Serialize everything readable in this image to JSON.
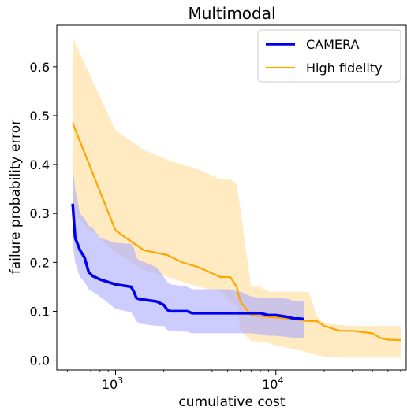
{
  "chart_data": {
    "type": "line",
    "title": "Multimodal",
    "xlabel": "cumulative cost",
    "ylabel": "failure probability error",
    "xscale": "log",
    "xlim": [
      430,
      65000
    ],
    "ylim": [
      -0.02,
      0.685
    ],
    "x_ticks": [
      {
        "value": 1000,
        "base": "10",
        "exp": "3"
      },
      {
        "value": 10000,
        "base": "10",
        "exp": "4"
      }
    ],
    "y_ticks": [
      {
        "value": 0.0,
        "label": "0.0"
      },
      {
        "value": 0.1,
        "label": "0.1"
      },
      {
        "value": 0.2,
        "label": "0.2"
      },
      {
        "value": 0.3,
        "label": "0.3"
      },
      {
        "value": 0.4,
        "label": "0.4"
      },
      {
        "value": 0.5,
        "label": "0.5"
      },
      {
        "value": 0.6,
        "label": "0.6"
      }
    ],
    "grid": false,
    "legend_position": "upper right",
    "series": [
      {
        "name": "CAMERA",
        "color": "#0000ee",
        "band_color": "#aaaaff",
        "line_width": 3.5,
        "x": [
          540,
          560,
          600,
          640,
          680,
          720,
          800,
          1000,
          1250,
          1300,
          1350,
          1400,
          1800,
          2000,
          2100,
          2200,
          2800,
          3000,
          5000,
          6000,
          7000,
          8000,
          9000,
          10000,
          12000,
          13000,
          14000,
          15000
        ],
        "y": [
          0.32,
          0.25,
          0.225,
          0.21,
          0.18,
          0.172,
          0.165,
          0.155,
          0.15,
          0.14,
          0.127,
          0.125,
          0.12,
          0.113,
          0.103,
          0.1,
          0.1,
          0.096,
          0.096,
          0.096,
          0.096,
          0.096,
          0.092,
          0.092,
          0.088,
          0.085,
          0.085,
          0.084
        ],
        "upper": [
          0.4,
          0.35,
          0.3,
          0.29,
          0.275,
          0.27,
          0.25,
          0.24,
          0.238,
          0.23,
          0.21,
          0.205,
          0.19,
          0.17,
          0.16,
          0.155,
          0.15,
          0.145,
          0.145,
          0.14,
          0.13,
          0.128,
          0.128,
          0.128,
          0.125,
          0.12,
          0.12,
          0.12
        ],
        "lower": [
          0.24,
          0.2,
          0.17,
          0.16,
          0.145,
          0.14,
          0.13,
          0.105,
          0.098,
          0.09,
          0.08,
          0.075,
          0.07,
          0.07,
          0.062,
          0.06,
          0.058,
          0.055,
          0.055,
          0.055,
          0.055,
          0.053,
          0.05,
          0.05,
          0.047,
          0.046,
          0.045,
          0.045
        ]
      },
      {
        "name": "High fidelity",
        "color": "#ffa500",
        "band_color": "#ffe3ad",
        "line_width": 2.2,
        "x": [
          540,
          1000,
          1500,
          2100,
          2600,
          3300,
          4500,
          4700,
          5200,
          5700,
          6000,
          7000,
          8000,
          9000,
          10000,
          12000,
          14000,
          16000,
          18000,
          20000,
          25000,
          30000,
          40000,
          45000,
          50000,
          60000
        ],
        "y": [
          0.485,
          0.265,
          0.225,
          0.215,
          0.2,
          0.19,
          0.17,
          0.17,
          0.17,
          0.15,
          0.12,
          0.092,
          0.09,
          0.088,
          0.087,
          0.085,
          0.082,
          0.08,
          0.08,
          0.07,
          0.06,
          0.06,
          0.055,
          0.045,
          0.042,
          0.041
        ],
        "upper": [
          0.66,
          0.47,
          0.43,
          0.41,
          0.4,
          0.39,
          0.37,
          0.37,
          0.37,
          0.36,
          0.31,
          0.15,
          0.15,
          0.14,
          0.14,
          0.14,
          0.14,
          0.14,
          0.09,
          0.075,
          0.072,
          0.07,
          0.07,
          0.07,
          0.07,
          0.07
        ],
        "lower": [
          0.3,
          0.22,
          0.185,
          0.17,
          0.16,
          0.15,
          0.14,
          0.135,
          0.12,
          0.11,
          0.06,
          0.04,
          0.038,
          0.035,
          0.03,
          0.025,
          0.02,
          0.015,
          0.01,
          0.008,
          0.005,
          0.005,
          0.005,
          0.005,
          0.005,
          0.005
        ]
      }
    ]
  }
}
